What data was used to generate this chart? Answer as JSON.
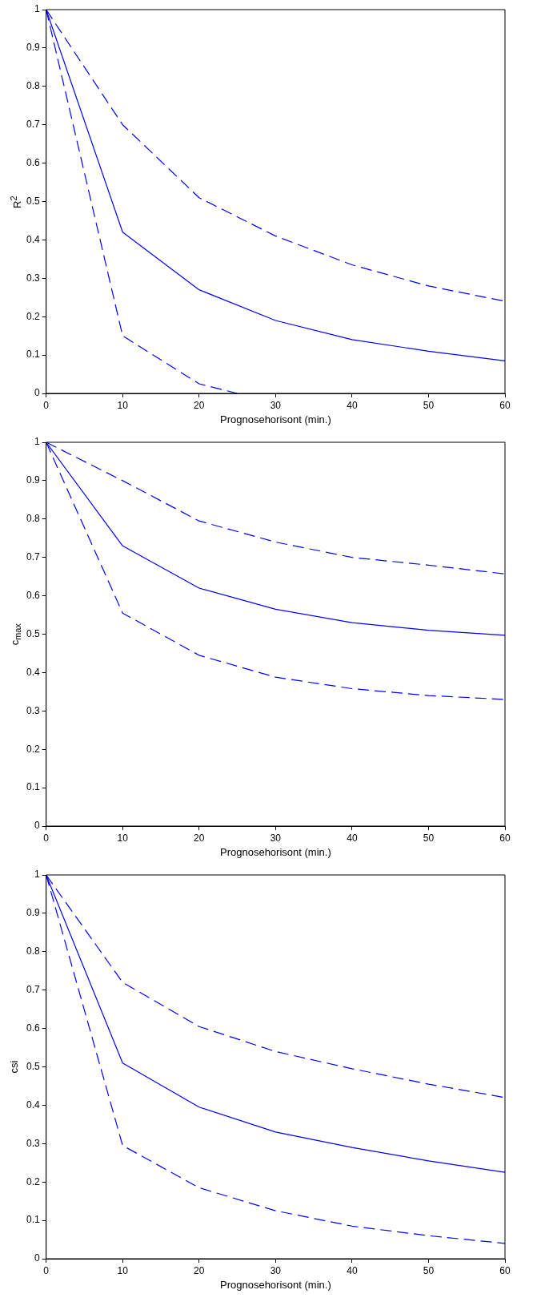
{
  "chart_data": [
    {
      "type": "line",
      "xlabel": "Prognosehorisont (min.)",
      "ylabel": "R$^{2}$",
      "x": [
        0,
        10,
        20,
        30,
        40,
        50,
        60
      ],
      "xlim": [
        0,
        60
      ],
      "xticks": [
        0,
        10,
        20,
        30,
        40,
        50,
        60
      ],
      "ylim": [
        0,
        1
      ],
      "yticks": [
        0,
        0.1,
        0.2,
        0.3,
        0.4,
        0.5,
        0.6,
        0.7,
        0.8,
        0.9,
        1
      ],
      "grid": false,
      "legend": false,
      "marker": "none",
      "series": [
        {
          "color": "#0000ff",
          "line_style": "solid",
          "values": [
            1,
            0.42,
            0.27,
            0.19,
            0.14,
            0.11,
            0.085
          ]
        },
        {
          "color": "#0000ff",
          "line_style": "dashed",
          "values": [
            1,
            0.7,
            0.51,
            0.41,
            0.335,
            0.28,
            0.24
          ]
        },
        {
          "color": "#0000ff",
          "line_style": "dashed",
          "x": [
            0,
            10,
            20,
            25
          ],
          "values": [
            1,
            0.15,
            0.025,
            0
          ]
        }
      ]
    },
    {
      "type": "line",
      "xlabel": "Prognosehorisont (min.)",
      "ylabel": "c$_{max}$",
      "x": [
        0,
        10,
        20,
        30,
        40,
        50,
        60
      ],
      "xlim": [
        0,
        60
      ],
      "xticks": [
        0,
        10,
        20,
        30,
        40,
        50,
        60
      ],
      "ylim": [
        0,
        1
      ],
      "yticks": [
        0,
        0.1,
        0.2,
        0.3,
        0.4,
        0.5,
        0.6,
        0.7,
        0.8,
        0.9,
        1
      ],
      "grid": false,
      "legend": false,
      "marker": "none",
      "series": [
        {
          "color": "#0000ff",
          "line_style": "solid",
          "values": [
            1,
            0.73,
            0.62,
            0.565,
            0.53,
            0.51,
            0.497
          ]
        },
        {
          "color": "#0000ff",
          "line_style": "dashed",
          "values": [
            1,
            0.9,
            0.795,
            0.74,
            0.7,
            0.68,
            0.657
          ]
        },
        {
          "color": "#0000ff",
          "line_style": "dashed",
          "values": [
            1,
            0.555,
            0.445,
            0.388,
            0.358,
            0.34,
            0.33
          ]
        }
      ]
    },
    {
      "type": "line",
      "xlabel": "Prognosehorisont (min.)",
      "ylabel": "csi",
      "x": [
        0,
        10,
        20,
        30,
        40,
        50,
        60
      ],
      "xlim": [
        0,
        60
      ],
      "xticks": [
        0,
        10,
        20,
        30,
        40,
        50,
        60
      ],
      "ylim": [
        0,
        1
      ],
      "yticks": [
        0,
        0.1,
        0.2,
        0.3,
        0.4,
        0.5,
        0.6,
        0.7,
        0.8,
        0.9,
        1
      ],
      "grid": false,
      "legend": false,
      "marker": "none",
      "series": [
        {
          "color": "#0000ff",
          "line_style": "solid",
          "values": [
            1,
            0.51,
            0.395,
            0.33,
            0.29,
            0.255,
            0.225
          ]
        },
        {
          "color": "#0000ff",
          "line_style": "dashed",
          "values": [
            1,
            0.72,
            0.605,
            0.54,
            0.495,
            0.455,
            0.42
          ]
        },
        {
          "color": "#0000ff",
          "line_style": "dashed",
          "values": [
            1,
            0.295,
            0.185,
            0.125,
            0.085,
            0.06,
            0.04
          ]
        }
      ]
    }
  ]
}
